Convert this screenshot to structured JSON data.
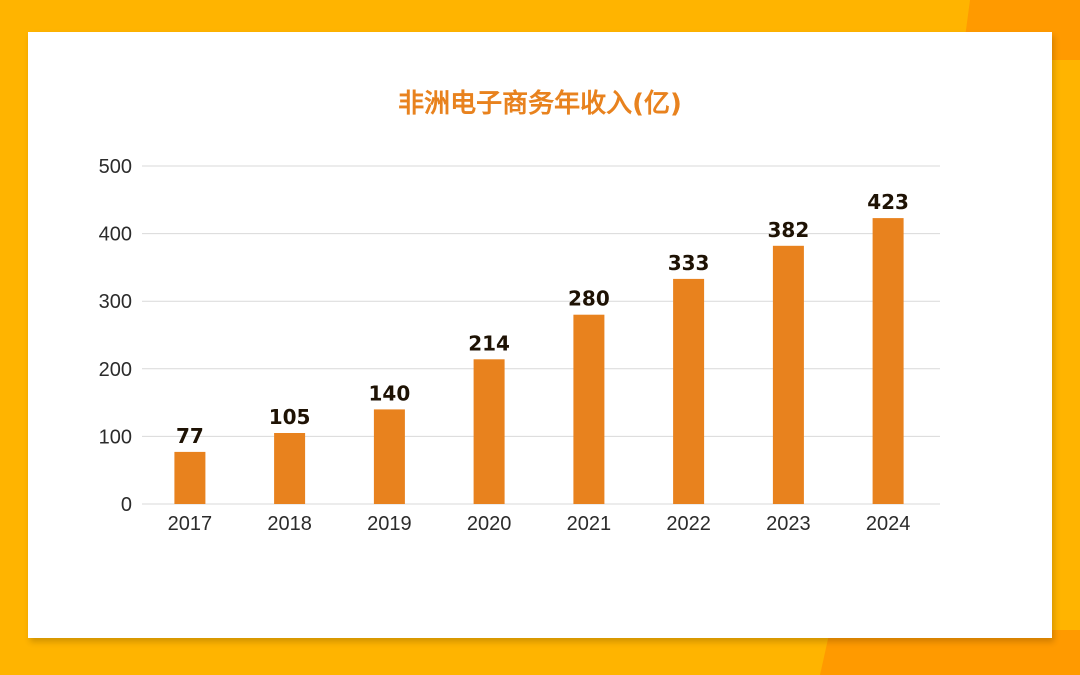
{
  "colors": {
    "background": "#FFB400",
    "accent": "#FF9A00",
    "card": "#FFFFFF",
    "bar": "#E8821E",
    "title": "#E8821E",
    "grid": "#D9D9D9"
  },
  "chart_data": {
    "type": "bar",
    "title": "非洲电子商务年收入(亿)",
    "xlabel": "",
    "ylabel": "",
    "categories": [
      "2017",
      "2018",
      "2019",
      "2020",
      "2021",
      "2022",
      "2023",
      "2024"
    ],
    "values": [
      77,
      105,
      140,
      214,
      280,
      333,
      382,
      423
    ],
    "ylim": [
      0,
      500
    ],
    "yticks": [
      0,
      100,
      200,
      300,
      400,
      500
    ],
    "grid": true,
    "legend": "none"
  }
}
